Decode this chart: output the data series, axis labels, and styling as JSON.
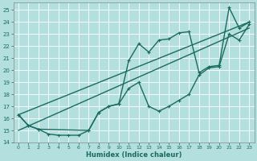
{
  "xlabel": "Humidex (Indice chaleur)",
  "background_color": "#b3e0df",
  "grid_color": "#ffffff",
  "line_color": "#1a6b5e",
  "xlim": [
    -0.5,
    23.5
  ],
  "ylim": [
    14,
    25.6
  ],
  "yticks": [
    14,
    15,
    16,
    17,
    18,
    19,
    20,
    21,
    22,
    23,
    24,
    25
  ],
  "xticks": [
    0,
    1,
    2,
    3,
    4,
    5,
    6,
    7,
    8,
    9,
    10,
    11,
    12,
    13,
    14,
    15,
    16,
    17,
    18,
    19,
    20,
    21,
    22,
    23
  ],
  "line1_x": [
    0,
    1,
    2,
    3,
    4,
    5,
    6,
    7,
    8,
    9,
    10,
    11,
    12,
    13,
    14,
    15,
    16,
    17,
    18,
    19,
    20,
    21,
    22,
    23
  ],
  "line1_y": [
    16.3,
    15.4,
    15.1,
    14.7,
    14.6,
    14.6,
    14.6,
    15.0,
    16.5,
    17.0,
    17.2,
    20.8,
    22.2,
    21.5,
    22.5,
    22.6,
    23.1,
    23.2,
    19.8,
    20.3,
    20.4,
    25.2,
    23.5,
    24.0
  ],
  "line2_x": [
    0,
    1,
    2,
    7,
    8,
    9,
    10,
    11,
    12,
    13,
    14,
    15,
    16,
    17,
    18,
    19,
    20,
    21,
    22,
    23
  ],
  "line2_y": [
    16.3,
    15.4,
    15.1,
    15.0,
    16.5,
    17.0,
    17.2,
    18.5,
    19.0,
    17.0,
    16.6,
    17.0,
    17.5,
    18.0,
    19.6,
    20.2,
    20.3,
    23.0,
    22.5,
    23.8
  ],
  "line3_x": [
    0,
    23
  ],
  "line3_y": [
    15.0,
    23.5
  ],
  "line4_x": [
    0,
    23
  ],
  "line4_y": [
    16.3,
    24.0
  ],
  "marker_size": 3,
  "line_width": 1.0
}
